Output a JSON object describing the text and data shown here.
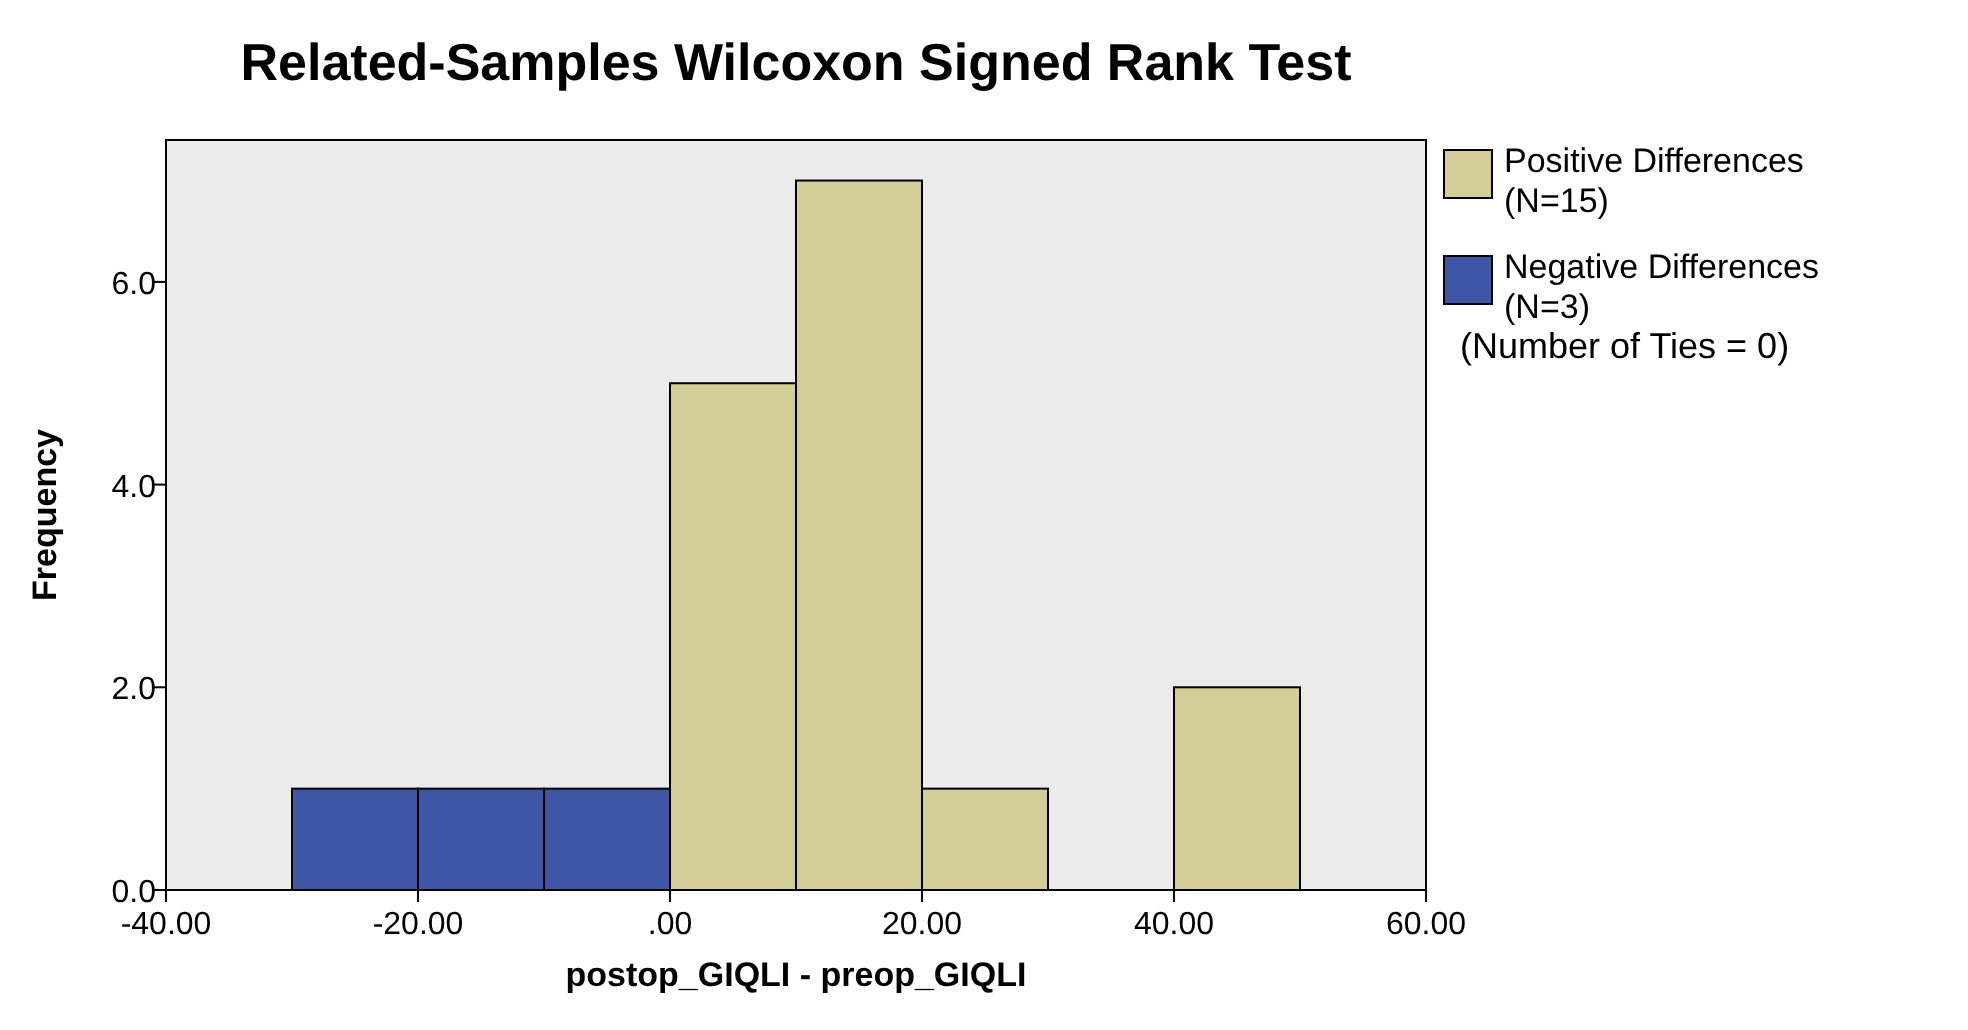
{
  "chart_data": {
    "type": "histogram",
    "title": "Related-Samples Wilcoxon Signed Rank Test",
    "xlabel": "postop_GIQLI - preop_GIQLI",
    "ylabel": "Frequency",
    "bins": [
      -30,
      -20,
      -10,
      0,
      10,
      20,
      30,
      40,
      50
    ],
    "series": [
      {
        "name": "Positive Differences\n(N=15)",
        "color": "#d3ce97",
        "values": [
          null,
          null,
          null,
          5,
          7,
          1,
          0,
          2
        ]
      },
      {
        "name": "Negative Differences\n(N=3)",
        "color": "#3f56a6",
        "values": [
          1,
          1,
          1,
          null,
          null,
          null,
          null,
          null
        ]
      }
    ],
    "xlim": [
      -40,
      60
    ],
    "xticks": [
      {
        "value": -40,
        "label": "-40.00"
      },
      {
        "value": -20,
        "label": "-20.00"
      },
      {
        "value": 0,
        "label": ".00"
      },
      {
        "value": 20,
        "label": "20.00"
      },
      {
        "value": 40,
        "label": "40.00"
      },
      {
        "value": 60,
        "label": "60.00"
      }
    ],
    "ylim": [
      0,
      7.4
    ],
    "yticks": [
      {
        "value": 0,
        "label": "0.0"
      },
      {
        "value": 2,
        "label": "2.0"
      },
      {
        "value": 4,
        "label": "4.0"
      },
      {
        "value": 6,
        "label": "6.0"
      }
    ],
    "grid": false,
    "legend": "right",
    "annotations": [
      "(Number of Ties = 0)"
    ]
  }
}
